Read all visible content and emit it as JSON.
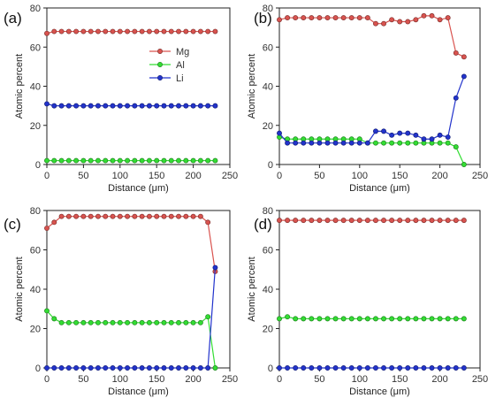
{
  "chart_data": [
    {
      "type": "line",
      "panel_label": "(a)",
      "xlabel": "Distance (μm)",
      "ylabel": "Atomic percent",
      "xlim": [
        0,
        250
      ],
      "ylim": [
        0,
        80
      ],
      "xticks": [
        0,
        50,
        100,
        150,
        200,
        250
      ],
      "yticks": [
        0,
        20,
        40,
        60,
        80
      ],
      "legend": {
        "placement": "top-center",
        "entries": [
          "Mg",
          "Al",
          "Li"
        ]
      },
      "x": [
        0,
        10,
        20,
        30,
        40,
        50,
        60,
        70,
        80,
        90,
        100,
        110,
        120,
        130,
        140,
        150,
        160,
        170,
        180,
        190,
        200,
        210,
        220,
        230
      ],
      "series": [
        {
          "name": "Mg",
          "color": "#d9534f",
          "values": [
            67,
            68,
            68,
            68,
            68,
            68,
            68,
            68,
            68,
            68,
            68,
            68,
            68,
            68,
            68,
            68,
            68,
            68,
            68,
            68,
            68,
            68,
            68,
            68
          ]
        },
        {
          "name": "Al",
          "color": "#33dd33",
          "values": [
            2,
            2,
            2,
            2,
            2,
            2,
            2,
            2,
            2,
            2,
            2,
            2,
            2,
            2,
            2,
            2,
            2,
            2,
            2,
            2,
            2,
            2,
            2,
            2
          ]
        },
        {
          "name": "Li",
          "color": "#2233cc",
          "values": [
            31,
            30,
            30,
            30,
            30,
            30,
            30,
            30,
            30,
            30,
            30,
            30,
            30,
            30,
            30,
            30,
            30,
            30,
            30,
            30,
            30,
            30,
            30,
            30
          ]
        }
      ]
    },
    {
      "type": "line",
      "panel_label": "(b)",
      "xlabel": "Distance (μm)",
      "ylabel": "Atomic percent",
      "xlim": [
        0,
        250
      ],
      "ylim": [
        0,
        80
      ],
      "xticks": [
        0,
        50,
        100,
        150,
        200,
        250
      ],
      "yticks": [
        0,
        20,
        40,
        60,
        80
      ],
      "x": [
        0,
        10,
        20,
        30,
        40,
        50,
        60,
        70,
        80,
        90,
        100,
        110,
        120,
        130,
        140,
        150,
        160,
        170,
        180,
        190,
        200,
        210,
        220,
        230
      ],
      "series": [
        {
          "name": "Mg",
          "color": "#d9534f",
          "values": [
            74,
            75,
            75,
            75,
            75,
            75,
            75,
            75,
            75,
            75,
            75,
            75,
            72,
            72,
            74,
            73,
            73,
            74,
            76,
            76,
            74,
            75,
            57,
            55
          ]
        },
        {
          "name": "Al",
          "color": "#33dd33",
          "values": [
            14,
            13,
            13,
            13,
            13,
            13,
            13,
            13,
            13,
            13,
            13,
            11,
            11,
            11,
            11,
            11,
            11,
            11,
            11,
            11,
            11,
            11,
            9,
            0
          ]
        },
        {
          "name": "Li",
          "color": "#2233cc",
          "values": [
            16,
            11,
            11,
            11,
            11,
            11,
            11,
            11,
            11,
            11,
            11,
            11,
            17,
            17,
            15,
            16,
            16,
            15,
            13,
            13,
            15,
            14,
            34,
            45
          ]
        }
      ]
    },
    {
      "type": "line",
      "panel_label": "(c)",
      "xlabel": "Distance (μm)",
      "ylabel": "Atomic percent",
      "xlim": [
        0,
        250
      ],
      "ylim": [
        0,
        80
      ],
      "xticks": [
        0,
        50,
        100,
        150,
        200,
        250
      ],
      "yticks": [
        0,
        20,
        40,
        60,
        80
      ],
      "x": [
        0,
        10,
        20,
        30,
        40,
        50,
        60,
        70,
        80,
        90,
        100,
        110,
        120,
        130,
        140,
        150,
        160,
        170,
        180,
        190,
        200,
        210,
        220,
        230
      ],
      "series": [
        {
          "name": "Mg",
          "color": "#d9534f",
          "values": [
            71,
            74,
            77,
            77,
            77,
            77,
            77,
            77,
            77,
            77,
            77,
            77,
            77,
            77,
            77,
            77,
            77,
            77,
            77,
            77,
            77,
            77,
            74,
            49
          ]
        },
        {
          "name": "Al",
          "color": "#33dd33",
          "values": [
            29,
            25,
            23,
            23,
            23,
            23,
            23,
            23,
            23,
            23,
            23,
            23,
            23,
            23,
            23,
            23,
            23,
            23,
            23,
            23,
            23,
            23,
            26,
            0
          ]
        },
        {
          "name": "Li",
          "color": "#2233cc",
          "values": [
            0,
            0,
            0,
            0,
            0,
            0,
            0,
            0,
            0,
            0,
            0,
            0,
            0,
            0,
            0,
            0,
            0,
            0,
            0,
            0,
            0,
            0,
            0,
            51
          ]
        }
      ]
    },
    {
      "type": "line",
      "panel_label": "(d)",
      "xlabel": "Distance (μm)",
      "ylabel": "Atomic percent",
      "xlim": [
        0,
        250
      ],
      "ylim": [
        0,
        80
      ],
      "xticks": [
        0,
        50,
        100,
        150,
        200,
        250
      ],
      "yticks": [
        0,
        20,
        40,
        60,
        80
      ],
      "x": [
        0,
        10,
        20,
        30,
        40,
        50,
        60,
        70,
        80,
        90,
        100,
        110,
        120,
        130,
        140,
        150,
        160,
        170,
        180,
        190,
        200,
        210,
        220,
        230
      ],
      "series": [
        {
          "name": "Mg",
          "color": "#d9534f",
          "values": [
            75,
            75,
            75,
            75,
            75,
            75,
            75,
            75,
            75,
            75,
            75,
            75,
            75,
            75,
            75,
            75,
            75,
            75,
            75,
            75,
            75,
            75,
            75,
            75
          ]
        },
        {
          "name": "Al",
          "color": "#33dd33",
          "values": [
            25,
            26,
            25,
            25,
            25,
            25,
            25,
            25,
            25,
            25,
            25,
            25,
            25,
            25,
            25,
            25,
            25,
            25,
            25,
            25,
            25,
            25,
            25,
            25
          ]
        },
        {
          "name": "Li",
          "color": "#2233cc",
          "values": [
            0,
            0,
            0,
            0,
            0,
            0,
            0,
            0,
            0,
            0,
            0,
            0,
            0,
            0,
            0,
            0,
            0,
            0,
            0,
            0,
            0,
            0,
            0,
            0
          ]
        }
      ]
    }
  ]
}
